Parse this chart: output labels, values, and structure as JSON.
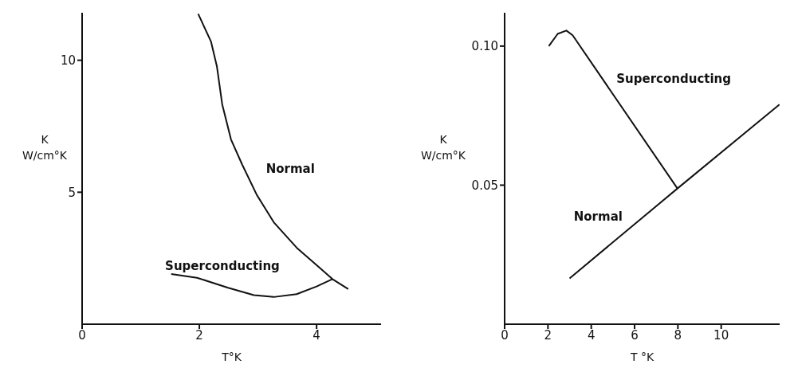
{
  "chart_data": [
    {
      "type": "line",
      "xlabel": "T°K",
      "ylabel": "K W/cm°K",
      "xlim": [
        0,
        5.1
      ],
      "ylim": [
        0,
        11.8
      ],
      "xticks": [
        0,
        2,
        4
      ],
      "yticks": [
        5,
        10
      ],
      "grid": false,
      "legend": false,
      "marker": "none",
      "line_style": "solid",
      "series": [
        {
          "name": "Normal",
          "color": "#111111",
          "x": [
            1.98,
            2.2,
            2.3,
            2.39,
            2.54,
            2.73,
            2.98,
            3.27,
            3.66,
            4.05,
            4.27,
            4.54
          ],
          "values": [
            11.76,
            10.7,
            9.76,
            8.33,
            7.0,
            6.05,
            4.9,
            3.86,
            2.9,
            2.14,
            1.71,
            1.33
          ]
        },
        {
          "name": "Superconducting",
          "color": "#111111",
          "x": [
            1.52,
            1.96,
            2.49,
            2.93,
            3.27,
            3.66,
            4.0,
            4.27
          ],
          "values": [
            1.9,
            1.76,
            1.38,
            1.1,
            1.03,
            1.14,
            1.43,
            1.71
          ]
        }
      ]
    },
    {
      "type": "line",
      "xlabel": "T °K",
      "ylabel": "K W/cm°K",
      "xlim": [
        0,
        12.7
      ],
      "ylim": [
        0,
        0.112
      ],
      "xticks": [
        0,
        2,
        4,
        6,
        8,
        10
      ],
      "yticks": [
        0.05,
        {
          "value": 0.1,
          "label": "0.10"
        }
      ],
      "grid": false,
      "legend": false,
      "marker": "none",
      "line_style": "solid",
      "series": [
        {
          "name": "Superconducting",
          "color": "#111111",
          "x": [
            2.04,
            2.45,
            2.85,
            3.14,
            7.98
          ],
          "values": [
            0.1,
            0.1044,
            0.1056,
            0.1039,
            0.0488
          ]
        },
        {
          "name": "Normal",
          "color": "#111111",
          "x": [
            3.0,
            7.98,
            12.69
          ],
          "values": [
            0.0165,
            0.0488,
            0.079
          ]
        }
      ]
    }
  ]
}
